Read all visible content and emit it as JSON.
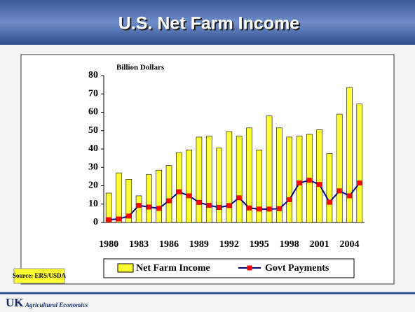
{
  "chart_data": {
    "type": "bar",
    "title": "U.S. Net Farm Income",
    "y_label": "Billion Dollars",
    "source": "Source:  ERS/USDA",
    "categories": [
      "1980",
      null,
      null,
      "1983",
      null,
      null,
      "1986",
      null,
      null,
      "1989",
      null,
      null,
      "1992",
      null,
      null,
      "1995",
      null,
      null,
      "1998",
      null,
      null,
      "2001",
      null,
      null,
      "2004",
      null
    ],
    "series": [
      {
        "name": "Net Farm Income",
        "type": "bar",
        "color": "#ffff33",
        "values": [
          16,
          27,
          23.5,
          14.5,
          26,
          28.5,
          31,
          38,
          39.5,
          46.5,
          47,
          40.5,
          49.5,
          47,
          51.5,
          39.5,
          58,
          51.5,
          46.5,
          47,
          48,
          50.5,
          37.5,
          59,
          73.5,
          64.5
        ]
      },
      {
        "name": "Govt Payments",
        "type": "line",
        "color": "#000080",
        "marker_color": "#ff0000",
        "values": [
          1.5,
          1.9,
          3.5,
          9.3,
          8.4,
          7.7,
          11.8,
          16.7,
          14.5,
          10.9,
          9.3,
          8.2,
          9.2,
          13.4,
          7.9,
          7.3,
          7.3,
          7.5,
          12.4,
          21.5,
          23,
          20.7,
          11,
          17.2,
          14.5,
          21.5
        ]
      }
    ],
    "ylim": [
      0,
      80
    ],
    "yticks": [
      0,
      10,
      20,
      30,
      40,
      50,
      60,
      70,
      80
    ],
    "grid": false,
    "legend": "bottom"
  },
  "footer": {
    "logo": "UK",
    "text": "Agricultural Economics"
  }
}
